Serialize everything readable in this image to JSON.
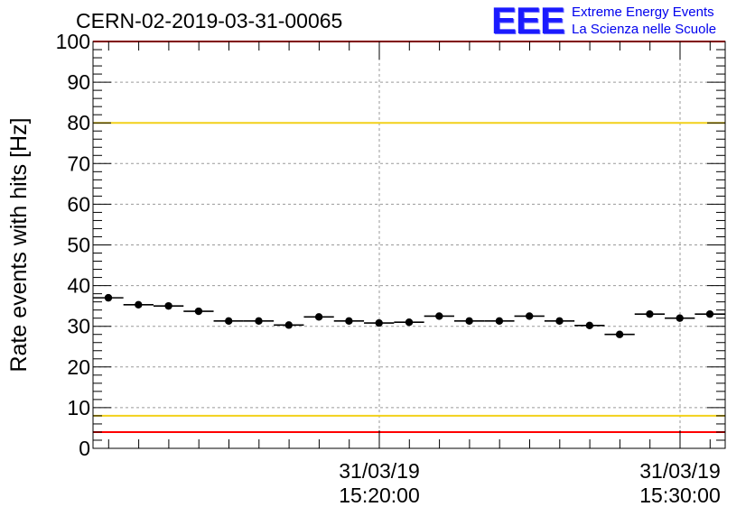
{
  "header": {
    "run_label": "CERN-02-2019-03-31-00065"
  },
  "logo": {
    "mark": "EEE",
    "line1": "Extreme Energy Events",
    "line2": "La Scienza nelle Scuole",
    "color": "#1a1aff"
  },
  "chart_data": {
    "type": "scatter",
    "ylabel": "Rate events with hits [Hz]",
    "ylim": [
      0,
      100
    ],
    "y_ticks": [
      0,
      10,
      20,
      30,
      40,
      50,
      60,
      70,
      80,
      90,
      100
    ],
    "x_ticks": [
      {
        "date": "31/03/19",
        "time": "15:20:00"
      },
      {
        "date": "31/03/19",
        "time": "15:30:00"
      }
    ],
    "grid": true,
    "series": [
      {
        "values": [
          37,
          35.3,
          35,
          33.7,
          31.3,
          31.3,
          30.3,
          32.3,
          31.3,
          30.8,
          31,
          32.5,
          31.3,
          31.3,
          32.5,
          31.3,
          30.2,
          28,
          33,
          32,
          33
        ]
      }
    ],
    "reference_lines": [
      {
        "y": 100,
        "color": "#ff0000"
      },
      {
        "y": 80,
        "color": "#f2d11a"
      },
      {
        "y": 8,
        "color": "#f2d11a"
      },
      {
        "y": 4,
        "color": "#ff0000"
      }
    ]
  }
}
